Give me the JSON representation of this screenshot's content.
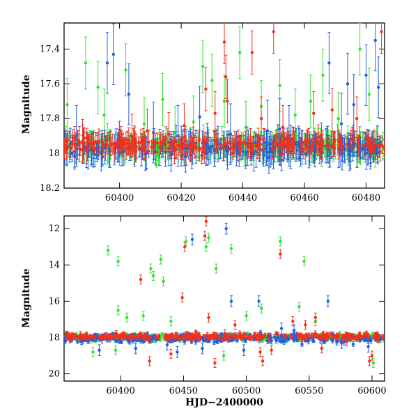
{
  "colors": {
    "green": "#33e033",
    "blue": "#1f5fe0",
    "red": "#f2301c"
  },
  "chart_data": [
    {
      "type": "scatter",
      "title": "",
      "xlabel": "",
      "ylabel": "Magnitude",
      "xlim": [
        60382,
        60486
      ],
      "ylim": [
        18.2,
        17.25
      ],
      "y_inverted": true,
      "xticks": [
        60400,
        60420,
        60440,
        60460,
        60480
      ],
      "xtick_labels": [
        "60400",
        "60420",
        "60440",
        "60460",
        "60480"
      ],
      "yticks": [
        17.4,
        17.6,
        17.8,
        18,
        18.2
      ],
      "ytick_labels": [
        "17.4",
        "17.6",
        "17.8",
        "18",
        "18.2"
      ],
      "grid": false,
      "series": [
        {
          "color": "green",
          "baseline": 17.96,
          "scatter": 0.035,
          "error": 0.06,
          "outliers": [
            [
              60383,
              17.72
            ],
            [
              60389,
              17.48
            ],
            [
              60393,
              17.62
            ],
            [
              60395,
              17.78
            ],
            [
              60402,
              17.52
            ],
            [
              60408,
              17.83
            ],
            [
              60414,
              17.69
            ],
            [
              60418,
              17.88
            ],
            [
              60424,
              17.82
            ],
            [
              60427,
              17.5
            ],
            [
              60430,
              17.58
            ],
            [
              60434,
              17.7
            ],
            [
              60439,
              17.42
            ],
            [
              60441,
              17.85
            ],
            [
              60446,
              17.73
            ],
            [
              60452,
              17.61
            ],
            [
              60457,
              17.78
            ],
            [
              60462,
              17.7
            ],
            [
              60466,
              17.55
            ],
            [
              60471,
              17.8
            ],
            [
              60478,
              17.4
            ],
            [
              60481,
              17.66
            ]
          ]
        },
        {
          "color": "blue",
          "baseline": 17.97,
          "scatter": 0.04,
          "error": 0.07,
          "outliers": [
            [
              60386,
              17.9
            ],
            [
              60396,
              17.48
            ],
            [
              60398,
              17.43
            ],
            [
              60403,
              17.66
            ],
            [
              60411,
              17.88
            ],
            [
              60419,
              17.9
            ],
            [
              60426,
              17.79
            ],
            [
              60436,
              17.89
            ],
            [
              60448,
              17.87
            ],
            [
              60452,
              17.86
            ],
            [
              60455,
              17.9
            ],
            [
              60468,
              17.48
            ],
            [
              60472,
              17.83
            ],
            [
              60474,
              17.6
            ],
            [
              60476,
              17.72
            ],
            [
              60480,
              17.55
            ],
            [
              60483,
              17.35
            ],
            [
              60484,
              17.62
            ]
          ]
        },
        {
          "color": "red",
          "baseline": 17.95,
          "scatter": 0.035,
          "error": 0.05,
          "outliers": [
            [
              60388,
              17.93
            ],
            [
              60404,
              17.9
            ],
            [
              60409,
              17.87
            ],
            [
              60416,
              17.89
            ],
            [
              60421,
              17.84
            ],
            [
              60428,
              17.63
            ],
            [
              60431,
              17.77
            ],
            [
              60434,
              17.36
            ],
            [
              60434.5,
              17.56
            ],
            [
              60435,
              17.7
            ],
            [
              60443,
              17.42
            ],
            [
              60446,
              17.8
            ],
            [
              60450,
              17.3
            ],
            [
              60453,
              17.85
            ],
            [
              60463,
              17.77
            ],
            [
              60469,
              17.75
            ],
            [
              60477,
              17.8
            ],
            [
              60485,
              17.3
            ]
          ]
        }
      ]
    },
    {
      "type": "scatter",
      "title": "",
      "xlabel": "HJD−2400000",
      "ylabel": "Magnitude",
      "xlim": [
        60355,
        60610
      ],
      "ylim": [
        20.4,
        11.3
      ],
      "y_inverted": true,
      "xticks": [
        60400,
        60450,
        60500,
        60550,
        60600
      ],
      "xtick_labels": [
        "60400",
        "60450",
        "60500",
        "60550",
        "60600"
      ],
      "yticks": [
        12,
        14,
        16,
        18,
        20
      ],
      "ytick_labels": [
        "12",
        "14",
        "16",
        "18",
        "20"
      ],
      "grid": false,
      "series": [
        {
          "color": "green",
          "baseline": 18.0,
          "scatter": 0.15,
          "error": 0.1,
          "outliers": [
            [
              60390,
              13.2
            ],
            [
              60398,
              13.8
            ],
            [
              60398,
              16.5
            ],
            [
              60405,
              16.9
            ],
            [
              60418,
              16.8
            ],
            [
              60424,
              14.2
            ],
            [
              60426,
              14.6
            ],
            [
              60432,
              13.7
            ],
            [
              60434,
              14.9
            ],
            [
              60440,
              17.1
            ],
            [
              60452,
              12.7
            ],
            [
              60468,
              13.0
            ],
            [
              60470,
              12.5
            ],
            [
              60476,
              14.2
            ],
            [
              60482,
              19.0
            ],
            [
              60488,
              13.1
            ],
            [
              60500,
              16.8
            ],
            [
              60512,
              16.4
            ],
            [
              60527,
              12.7
            ],
            [
              60542,
              16.3
            ],
            [
              60546,
              13.8
            ],
            [
              60555,
              17.1
            ],
            [
              60378,
              18.8
            ],
            [
              60396,
              18.7
            ],
            [
              60601,
              19.4
            ]
          ]
        },
        {
          "color": "blue",
          "baseline": 18.05,
          "scatter": 0.18,
          "error": 0.12,
          "outliers": [
            [
              60457,
              12.6
            ],
            [
              60484,
              12.0
            ],
            [
              60488,
              16.0
            ],
            [
              60510,
              16.0
            ],
            [
              60538,
              17.6
            ],
            [
              60565,
              16.0
            ],
            [
              60383,
              18.7
            ],
            [
              60412,
              18.6
            ],
            [
              60437,
              18.4
            ],
            [
              60445,
              18.8
            ],
            [
              60465,
              18.6
            ],
            [
              60498,
              18.7
            ],
            [
              60528,
              17.5
            ],
            [
              60576,
              18.3
            ],
            [
              60597,
              18.5
            ]
          ]
        },
        {
          "color": "red",
          "baseline": 17.95,
          "scatter": 0.15,
          "error": 0.1,
          "outliers": [
            [
              60416,
              14.8
            ],
            [
              60449,
              15.8
            ],
            [
              60451,
              13.0
            ],
            [
              60468,
              11.6
            ],
            [
              60467,
              12.4
            ],
            [
              60470,
              16.9
            ],
            [
              60483,
              17.8
            ],
            [
              60491,
              17.3
            ],
            [
              60511,
              18.8
            ],
            [
              60513,
              19.3
            ],
            [
              60527,
              13.4
            ],
            [
              60547,
              17.3
            ],
            [
              60555,
              16.9
            ],
            [
              60560,
              18.6
            ],
            [
              60598,
              19.3
            ],
            [
              60600,
              19.0
            ],
            [
              60423,
              19.3
            ],
            [
              60440,
              18.9
            ],
            [
              60475,
              19.4
            ],
            [
              60520,
              18.7
            ],
            [
              60537,
              17.1
            ],
            [
              60580,
              18.2
            ]
          ]
        }
      ]
    }
  ]
}
